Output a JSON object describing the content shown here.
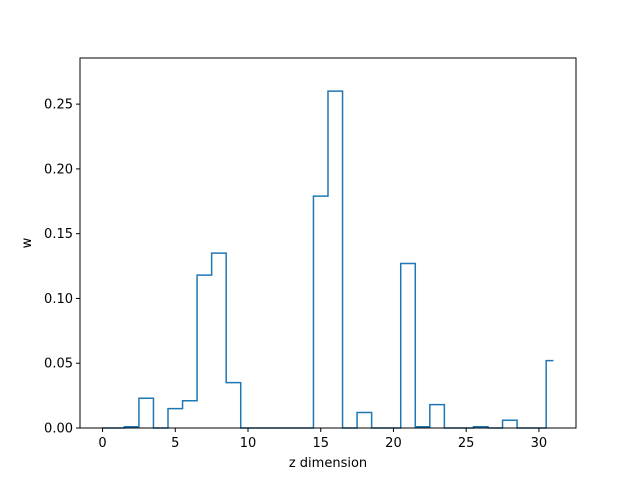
{
  "chart_data": {
    "type": "bar",
    "style": "step",
    "xlabel": "z dimension",
    "ylabel": "w",
    "xlim": [
      -1.55,
      32.55
    ],
    "ylim": [
      0,
      0.2856
    ],
    "xticks": [
      0,
      5,
      10,
      15,
      20,
      25,
      30
    ],
    "yticks": [
      0.0,
      0.05,
      0.1,
      0.15,
      0.2,
      0.25
    ],
    "ytick_labels": [
      "0.00",
      "0.05",
      "0.10",
      "0.15",
      "0.20",
      "0.25"
    ],
    "line_color": "#1f77b4",
    "grid": false,
    "x": [
      0,
      1,
      2,
      3,
      4,
      5,
      6,
      7,
      8,
      9,
      10,
      11,
      12,
      13,
      14,
      15,
      16,
      17,
      18,
      19,
      20,
      21,
      22,
      23,
      24,
      25,
      26,
      27,
      28,
      29,
      30,
      31
    ],
    "values": [
      0,
      0,
      0.001,
      0.023,
      0,
      0.015,
      0.021,
      0.118,
      0.135,
      0.035,
      0,
      0,
      0,
      0,
      0,
      0.179,
      0.26,
      0,
      0.012,
      0,
      0,
      0.127,
      0.001,
      0.018,
      0,
      0,
      0.001,
      0,
      0.006,
      0,
      0,
      0.052
    ]
  }
}
